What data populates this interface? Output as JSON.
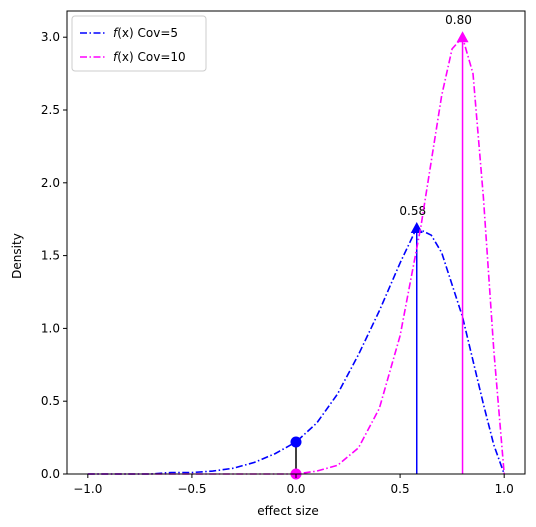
{
  "chart_data": {
    "type": "line",
    "title": "",
    "xlabel": "effect size",
    "ylabel": "Density",
    "xlim": [
      -1.1,
      1.1
    ],
    "ylim": [
      0,
      3.18
    ],
    "xticks": [
      -1.0,
      -0.5,
      0.0,
      0.5,
      1.0
    ],
    "xtick_labels": [
      "−1.0",
      "−0.5",
      "0.0",
      "0.5",
      "1.0"
    ],
    "yticks": [
      0.0,
      0.5,
      1.0,
      1.5,
      2.0,
      2.5,
      3.0
    ],
    "ytick_labels": [
      "0.0",
      "0.5",
      "1.0",
      "1.5",
      "2.0",
      "2.5",
      "3.0"
    ],
    "grid": false,
    "legend_position": "top-left",
    "series": [
      {
        "name": "Cov=5",
        "legend_math": "f(x)",
        "color": "#0000ff",
        "style": "dash-dot",
        "x": [
          -1.0,
          -0.9,
          -0.8,
          -0.7,
          -0.6,
          -0.5,
          -0.4,
          -0.3,
          -0.2,
          -0.1,
          0.0,
          0.1,
          0.2,
          0.3,
          0.4,
          0.5,
          0.58,
          0.65,
          0.7,
          0.8,
          0.9,
          0.95,
          1.0
        ],
        "y": [
          0.0,
          0.0,
          0.0,
          0.0,
          0.01,
          0.01,
          0.02,
          0.04,
          0.08,
          0.14,
          0.22,
          0.35,
          0.55,
          0.82,
          1.12,
          1.45,
          1.69,
          1.64,
          1.52,
          1.08,
          0.48,
          0.2,
          0.0
        ],
        "peak": {
          "x": 0.58,
          "y": 1.69,
          "label": "0.58",
          "marker": "triangle"
        },
        "at_zero": {
          "x": 0.0,
          "y": 0.22,
          "marker": "circle"
        }
      },
      {
        "name": "Cov=10",
        "legend_math": "f(x)",
        "color": "#ff00ff",
        "style": "dash-dot",
        "x": [
          -1.0,
          -0.8,
          -0.6,
          -0.4,
          -0.2,
          0.0,
          0.1,
          0.2,
          0.3,
          0.4,
          0.5,
          0.6,
          0.7,
          0.75,
          0.8,
          0.85,
          0.9,
          0.95,
          1.0
        ],
        "y": [
          0.0,
          0.0,
          0.0,
          0.0,
          0.0,
          0.0,
          0.02,
          0.06,
          0.18,
          0.45,
          0.95,
          1.7,
          2.6,
          2.92,
          3.0,
          2.75,
          1.9,
          0.85,
          0.0
        ],
        "peak": {
          "x": 0.8,
          "y": 3.0,
          "label": "0.80",
          "marker": "triangle"
        },
        "at_zero": {
          "x": 0.0,
          "y": 0.0,
          "marker": "circle"
        }
      }
    ]
  }
}
